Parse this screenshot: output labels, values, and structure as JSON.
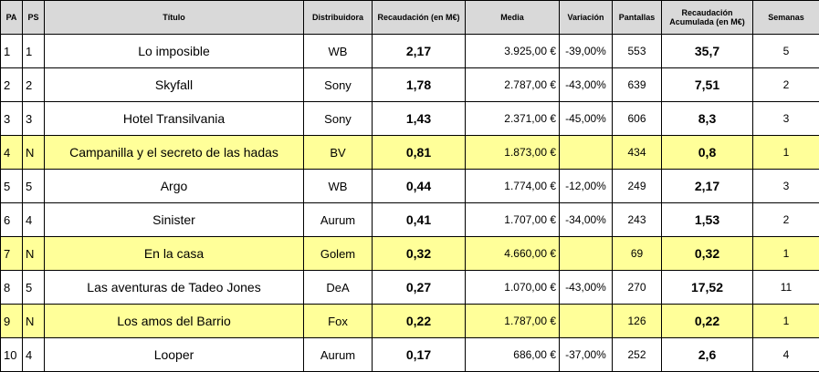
{
  "headers": {
    "pa": "PA",
    "ps": "PS",
    "title": "Título",
    "distributor": "Distribuidora",
    "gross": "Recaudación (en M€)",
    "average": "Media",
    "variation": "Variación",
    "screens": "Pantallas",
    "accumulated": "Recaudación Acumulada (en M€)",
    "weeks": "Semanas"
  },
  "rows": [
    {
      "pa": "1",
      "ps": "1",
      "title": "Lo imposible",
      "distributor": "WB",
      "gross": "2,17",
      "average": "3.925,00 €",
      "variation": "-39,00%",
      "screens": "553",
      "accumulated": "35,7",
      "weeks": "5",
      "is_new": false
    },
    {
      "pa": "2",
      "ps": "2",
      "title": "Skyfall",
      "distributor": "Sony",
      "gross": "1,78",
      "average": "2.787,00 €",
      "variation": "-43,00%",
      "screens": "639",
      "accumulated": "7,51",
      "weeks": "2",
      "is_new": false
    },
    {
      "pa": "3",
      "ps": "3",
      "title": "Hotel Transilvania",
      "distributor": "Sony",
      "gross": "1,43",
      "average": "2.371,00 €",
      "variation": "-45,00%",
      "screens": "606",
      "accumulated": "8,3",
      "weeks": "3",
      "is_new": false
    },
    {
      "pa": "4",
      "ps": "N",
      "title": "Campanilla y el secreto de las hadas",
      "distributor": "BV",
      "gross": "0,81",
      "average": "1.873,00 €",
      "variation": "",
      "screens": "434",
      "accumulated": "0,8",
      "weeks": "1",
      "is_new": true
    },
    {
      "pa": "5",
      "ps": "5",
      "title": "Argo",
      "distributor": "WB",
      "gross": "0,44",
      "average": "1.774,00 €",
      "variation": "-12,00%",
      "screens": "249",
      "accumulated": "2,17",
      "weeks": "3",
      "is_new": false
    },
    {
      "pa": "6",
      "ps": "4",
      "title": "Sinister",
      "distributor": "Aurum",
      "gross": "0,41",
      "average": "1.707,00 €",
      "variation": "-34,00%",
      "screens": "243",
      "accumulated": "1,53",
      "weeks": "2",
      "is_new": false
    },
    {
      "pa": "7",
      "ps": "N",
      "title": "En la casa",
      "distributor": "Golem",
      "gross": "0,32",
      "average": "4.660,00 €",
      "variation": "",
      "screens": "69",
      "accumulated": "0,32",
      "weeks": "1",
      "is_new": true
    },
    {
      "pa": "8",
      "ps": "5",
      "title": "Las aventuras de Tadeo Jones",
      "distributor": "DeA",
      "gross": "0,27",
      "average": "1.070,00 €",
      "variation": "-43,00%",
      "screens": "270",
      "accumulated": "17,52",
      "weeks": "11",
      "is_new": false
    },
    {
      "pa": "9",
      "ps": "N",
      "title": "Los amos del Barrio",
      "distributor": "Fox",
      "gross": "0,22",
      "average": "1.787,00 €",
      "variation": "",
      "screens": "126",
      "accumulated": "0,22",
      "weeks": "1",
      "is_new": true
    },
    {
      "pa": "10",
      "ps": "4",
      "title": "Looper",
      "distributor": "Aurum",
      "gross": "0,17",
      "average": "686,00 €",
      "variation": "-37,00%",
      "screens": "252",
      "accumulated": "2,6",
      "weeks": "4",
      "is_new": false
    }
  ],
  "colors": {
    "header_bg": "#d9d9d9",
    "new_release_bg": "#ffff99",
    "border": "#000000"
  }
}
